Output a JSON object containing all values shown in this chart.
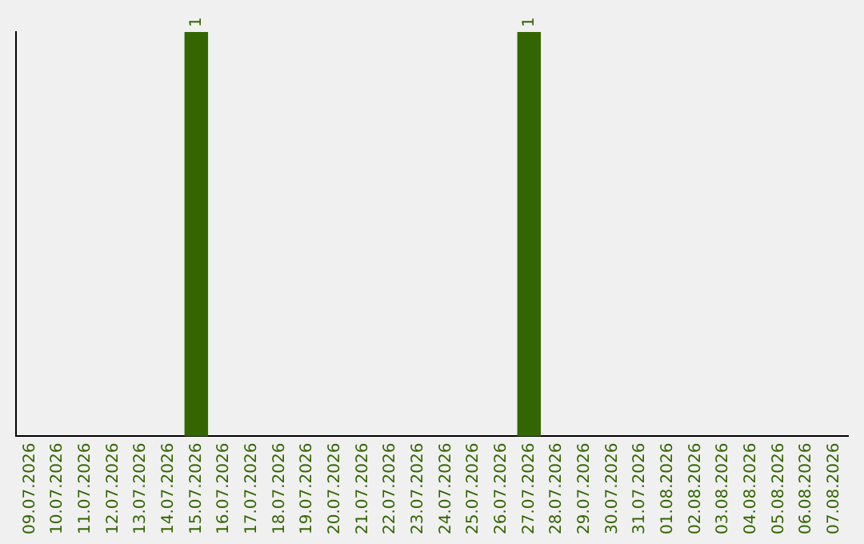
{
  "chart_data": {
    "type": "bar",
    "categories": [
      "09.07.2026",
      "10.07.2026",
      "11.07.2026",
      "12.07.2026",
      "13.07.2026",
      "14.07.2026",
      "15.07.2026",
      "16.07.2026",
      "17.07.2026",
      "18.07.2026",
      "19.07.2026",
      "20.07.2026",
      "21.07.2026",
      "22.07.2026",
      "23.07.2026",
      "24.07.2026",
      "25.07.2026",
      "26.07.2026",
      "27.07.2026",
      "28.07.2026",
      "29.07.2026",
      "30.07.2026",
      "31.07.2026",
      "01.08.2026",
      "02.08.2026",
      "03.08.2026",
      "04.08.2026",
      "05.08.2026",
      "06.08.2026",
      "07.08.2026"
    ],
    "values": [
      0,
      0,
      0,
      0,
      0,
      0,
      1,
      0,
      0,
      0,
      0,
      0,
      0,
      0,
      0,
      0,
      0,
      0,
      1,
      0,
      0,
      0,
      0,
      0,
      0,
      0,
      0,
      0,
      0,
      0
    ],
    "value_labels": [
      null,
      null,
      null,
      null,
      null,
      null,
      "1",
      null,
      null,
      null,
      null,
      null,
      null,
      null,
      null,
      null,
      null,
      null,
      "1",
      null,
      null,
      null,
      null,
      null,
      null,
      null,
      null,
      null,
      null,
      null
    ],
    "color": "#336600",
    "grid": false,
    "legend": false,
    "tick_labels": "x"
  }
}
